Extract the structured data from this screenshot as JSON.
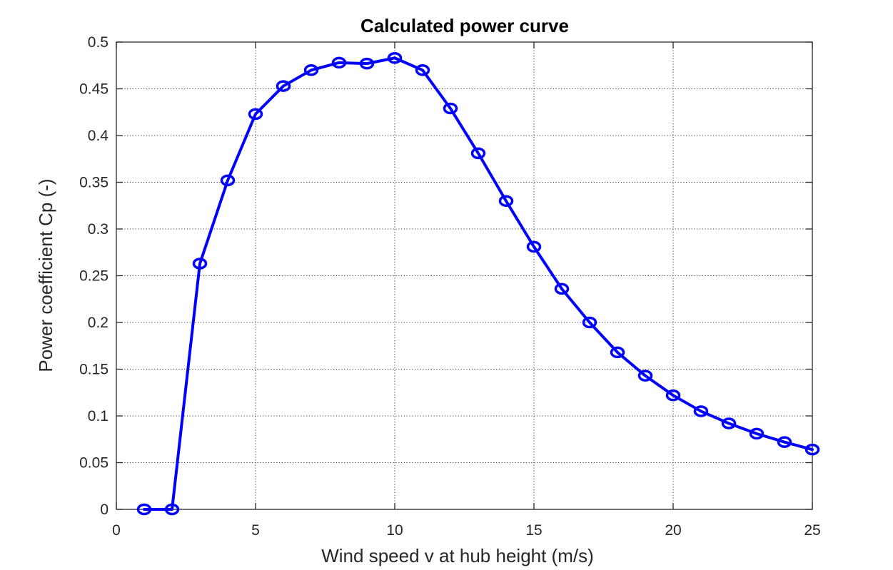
{
  "chart_data": {
    "type": "line",
    "title": "Calculated power curve",
    "xlabel": "Wind speed v at hub height (m/s)",
    "ylabel": "Power coefficient Cp (-)",
    "xlim": [
      0,
      25
    ],
    "ylim": [
      0,
      0.5
    ],
    "xticks": [
      0,
      5,
      10,
      15,
      20,
      25
    ],
    "yticks": [
      0,
      0.05,
      0.1,
      0.15,
      0.2,
      0.25,
      0.3,
      0.35,
      0.4,
      0.45,
      0.5
    ],
    "xtick_labels": [
      "0",
      "5",
      "10",
      "15",
      "20",
      "25"
    ],
    "ytick_labels": [
      "0",
      "0.05",
      "0.1",
      "0.15",
      "0.2",
      "0.25",
      "0.3",
      "0.35",
      "0.4",
      "0.45",
      "0.5"
    ],
    "grid": true,
    "marker": "circle",
    "color": "#0000ff",
    "series": [
      {
        "x": [
          1,
          2,
          3,
          4,
          5,
          6,
          7,
          8,
          9,
          10,
          11,
          12,
          13,
          14,
          15,
          16,
          17,
          18,
          19,
          20,
          21,
          22,
          23,
          24,
          25
        ],
        "values": [
          0.0,
          0.0,
          0.263,
          0.352,
          0.423,
          0.453,
          0.47,
          0.478,
          0.477,
          0.483,
          0.47,
          0.429,
          0.381,
          0.33,
          0.281,
          0.236,
          0.2,
          0.168,
          0.143,
          0.122,
          0.105,
          0.092,
          0.081,
          0.072,
          0.064
        ]
      }
    ]
  }
}
